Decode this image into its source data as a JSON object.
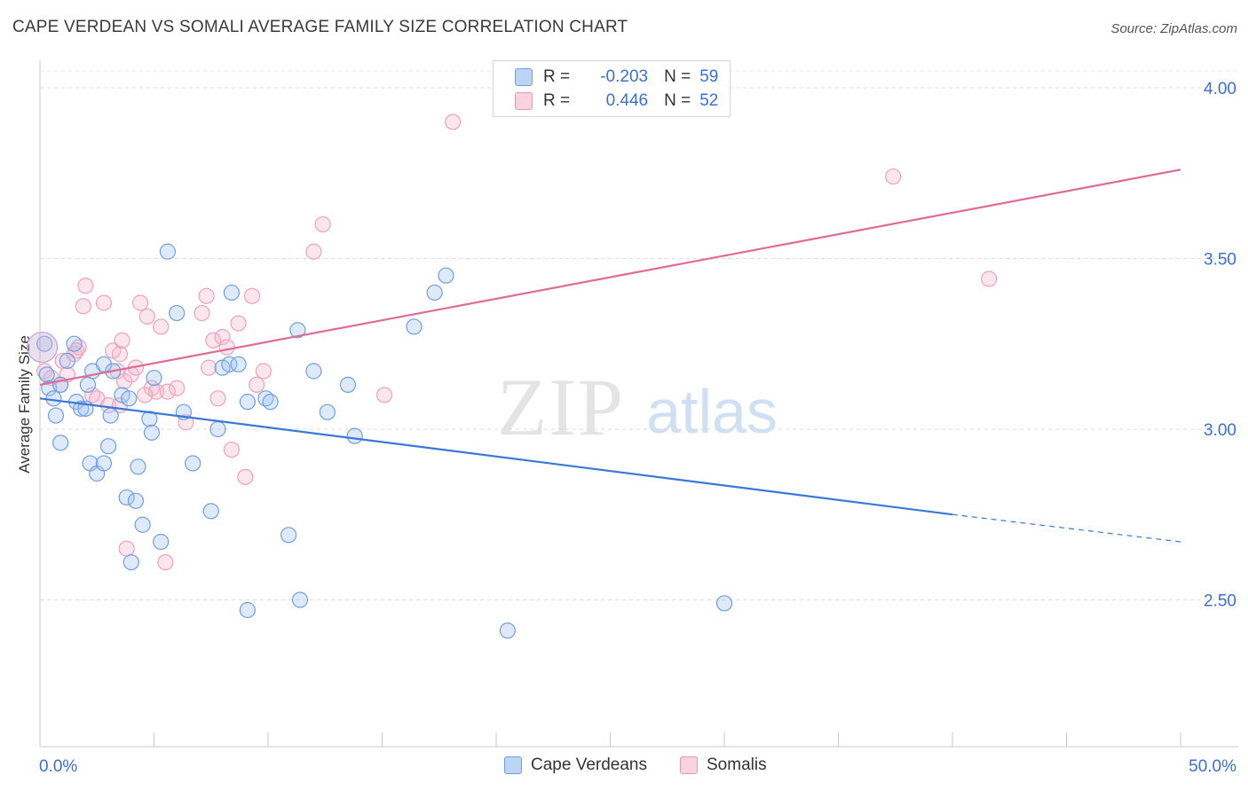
{
  "title": "CAPE VERDEAN VS SOMALI AVERAGE FAMILY SIZE CORRELATION CHART",
  "source": "Source: ZipAtlas.com",
  "watermark": {
    "zip": "ZIP",
    "atlas": "atlas"
  },
  "legend": {
    "rows": [
      {
        "r_label": "R =",
        "r_value": "-0.203",
        "n_label": "N =",
        "n_value": "59",
        "color": "#a9c8f0",
        "border": "#6f9fe0"
      },
      {
        "r_label": "R =",
        "r_value": "0.446",
        "n_label": "N =",
        "n_value": "52",
        "color": "#f8c3d3",
        "border": "#e897b1"
      }
    ]
  },
  "bottom_legend": [
    {
      "label": "Cape Verdeans",
      "color": "#a9c8f0",
      "border": "#6f9fe0"
    },
    {
      "label": "Somalis",
      "color": "#f8c3d3",
      "border": "#e897b1"
    }
  ],
  "colors": {
    "blue": "#3a78d8",
    "pink": "#e06b94",
    "blue_fill": "rgba(160,195,240,0.35)",
    "pink_fill": "rgba(247,184,204,0.35)",
    "axis_text": "#3b6fd4"
  },
  "chart_data": {
    "type": "scatter",
    "title": "CAPE VERDEAN VS SOMALI AVERAGE FAMILY SIZE CORRELATION CHART",
    "xlabel": "",
    "ylabel": "Average Family Size",
    "xlim": [
      0,
      50
    ],
    "ylim": [
      2.07,
      4.07
    ],
    "x_tick_labels": {
      "min": "0.0%",
      "max": "50.0%"
    },
    "y_ticks": [
      2.5,
      3.0,
      3.5,
      4.0
    ],
    "y_tick_labels": [
      "2.50",
      "3.00",
      "3.50",
      "4.00"
    ],
    "grid": true,
    "series": [
      {
        "name": "Cape Verdeans",
        "points": [
          [
            0.2,
            3.25
          ],
          [
            0.3,
            3.16
          ],
          [
            0.4,
            3.12
          ],
          [
            0.6,
            3.09
          ],
          [
            0.7,
            3.04
          ],
          [
            0.9,
            2.96
          ],
          [
            0.9,
            3.13
          ],
          [
            1.2,
            3.2
          ],
          [
            1.5,
            3.25
          ],
          [
            1.6,
            3.08
          ],
          [
            1.8,
            3.06
          ],
          [
            2.0,
            3.06
          ],
          [
            2.1,
            3.13
          ],
          [
            2.2,
            2.9
          ],
          [
            2.3,
            3.17
          ],
          [
            2.5,
            2.87
          ],
          [
            2.8,
            2.9
          ],
          [
            2.8,
            3.19
          ],
          [
            3.0,
            2.95
          ],
          [
            3.1,
            3.04
          ],
          [
            3.2,
            3.17
          ],
          [
            3.6,
            3.1
          ],
          [
            3.8,
            2.8
          ],
          [
            3.9,
            3.09
          ],
          [
            4.0,
            2.61
          ],
          [
            4.2,
            2.79
          ],
          [
            4.3,
            2.89
          ],
          [
            4.5,
            2.72
          ],
          [
            4.8,
            3.03
          ],
          [
            4.9,
            2.99
          ],
          [
            5.0,
            3.15
          ],
          [
            5.3,
            2.67
          ],
          [
            5.6,
            3.52
          ],
          [
            6.0,
            3.34
          ],
          [
            6.3,
            3.05
          ],
          [
            6.7,
            2.9
          ],
          [
            7.5,
            2.76
          ],
          [
            7.8,
            3.0
          ],
          [
            8.0,
            3.18
          ],
          [
            8.3,
            3.19
          ],
          [
            8.4,
            3.4
          ],
          [
            8.7,
            3.19
          ],
          [
            9.1,
            2.47
          ],
          [
            9.1,
            3.08
          ],
          [
            9.9,
            3.09
          ],
          [
            10.1,
            3.08
          ],
          [
            10.9,
            2.69
          ],
          [
            11.3,
            3.29
          ],
          [
            11.4,
            2.5
          ],
          [
            12.0,
            3.17
          ],
          [
            12.6,
            3.05
          ],
          [
            13.5,
            3.13
          ],
          [
            13.8,
            2.98
          ],
          [
            16.4,
            3.3
          ],
          [
            17.3,
            3.4
          ],
          [
            17.8,
            3.45
          ],
          [
            20.5,
            2.41
          ],
          [
            30.0,
            2.49
          ],
          [
            0.1,
            3.24
          ]
        ],
        "trend": {
          "x0": 0,
          "y0": 3.09,
          "x1": 40,
          "y1": 2.75,
          "dash_to_x": 50,
          "dash_to_y": 2.67
        }
      },
      {
        "name": "Somalis",
        "points": [
          [
            0.2,
            3.17
          ],
          [
            0.5,
            3.15
          ],
          [
            0.9,
            3.13
          ],
          [
            1.0,
            3.2
          ],
          [
            1.2,
            3.16
          ],
          [
            1.5,
            3.22
          ],
          [
            1.7,
            3.24
          ],
          [
            1.9,
            3.36
          ],
          [
            2.0,
            3.42
          ],
          [
            2.3,
            3.1
          ],
          [
            2.5,
            3.09
          ],
          [
            2.8,
            3.37
          ],
          [
            3.0,
            3.07
          ],
          [
            3.2,
            3.23
          ],
          [
            3.4,
            3.17
          ],
          [
            3.5,
            3.22
          ],
          [
            3.6,
            3.26
          ],
          [
            3.7,
            3.14
          ],
          [
            3.8,
            2.65
          ],
          [
            4.0,
            3.16
          ],
          [
            4.2,
            3.18
          ],
          [
            4.4,
            3.37
          ],
          [
            4.7,
            3.33
          ],
          [
            4.9,
            3.12
          ],
          [
            5.1,
            3.11
          ],
          [
            5.3,
            3.3
          ],
          [
            5.5,
            2.61
          ],
          [
            5.6,
            3.11
          ],
          [
            6.0,
            3.12
          ],
          [
            6.4,
            3.02
          ],
          [
            7.1,
            3.34
          ],
          [
            7.3,
            3.39
          ],
          [
            7.4,
            3.18
          ],
          [
            7.6,
            3.26
          ],
          [
            7.8,
            3.09
          ],
          [
            8.0,
            3.27
          ],
          [
            8.2,
            3.24
          ],
          [
            8.4,
            2.94
          ],
          [
            8.7,
            3.31
          ],
          [
            9.0,
            2.86
          ],
          [
            9.3,
            3.39
          ],
          [
            9.5,
            3.13
          ],
          [
            9.8,
            3.17
          ],
          [
            12.0,
            3.52
          ],
          [
            12.4,
            3.6
          ],
          [
            15.1,
            3.1
          ],
          [
            18.1,
            3.9
          ],
          [
            37.4,
            3.74
          ],
          [
            41.6,
            3.44
          ],
          [
            1.6,
            3.23
          ],
          [
            3.5,
            3.07
          ],
          [
            4.6,
            3.1
          ]
        ],
        "trend": {
          "x0": 0,
          "y0": 3.13,
          "x1": 50,
          "y1": 3.76
        }
      }
    ]
  }
}
